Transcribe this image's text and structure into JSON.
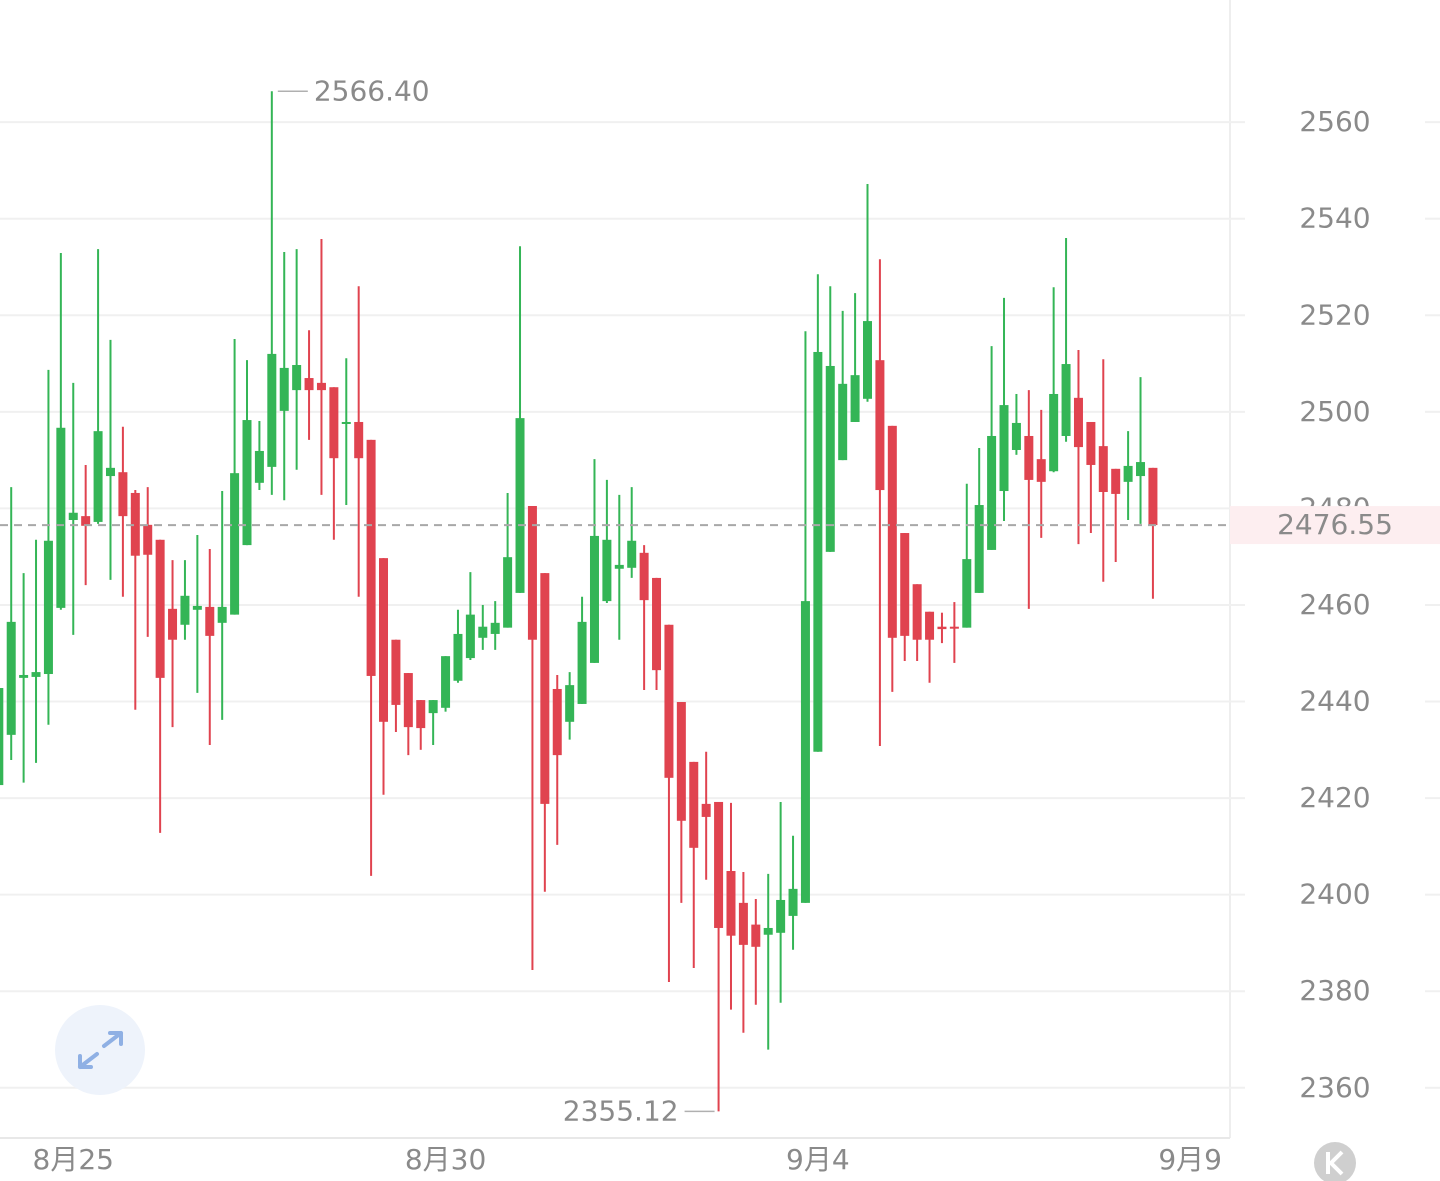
{
  "chart_data": {
    "type": "candlestick",
    "categories": [
      null,
      null,
      null,
      null,
      null,
      null,
      "8月25",
      null,
      null,
      null,
      null,
      null,
      null,
      null,
      null,
      null,
      null,
      null,
      null,
      null,
      null,
      null,
      null,
      null,
      null,
      null,
      null,
      null,
      null,
      null,
      null,
      null,
      null,
      null,
      null,
      null,
      "8月30",
      null,
      null,
      null,
      null,
      null,
      null,
      null,
      null,
      null,
      null,
      null,
      null,
      null,
      null,
      null,
      null,
      null,
      null,
      null,
      null,
      null,
      null,
      null,
      null,
      null,
      null,
      null,
      null,
      null,
      "9月4",
      null,
      null,
      null,
      null,
      null,
      null,
      null,
      null,
      null,
      null,
      null,
      null,
      null,
      null,
      null,
      null,
      null,
      null,
      null,
      null,
      null,
      null,
      null,
      null,
      null,
      null,
      null,
      null,
      null,
      "9月9"
    ],
    "open": [
      2422.7,
      2433.1,
      2444.9,
      2445.1,
      2445.7,
      2459.4,
      2477.6,
      2478.4,
      2477.2,
      2486.7,
      2487.5,
      2483.2,
      2476.6,
      2473.5,
      2459.2,
      2455.9,
      2459.0,
      2459.6,
      2456.3,
      2458.0,
      2472.4,
      2485.3,
      2488.6,
      2500.2,
      2504.5,
      2507.0,
      2506.0,
      2505.1,
      2497.5,
      2497.9,
      2494.2,
      2469.7,
      2452.8,
      2445.9,
      2440.3,
      2437.6,
      2438.7,
      2444.3,
      2449.0,
      2453.2,
      2454.0,
      2455.3,
      2462.5,
      2480.5,
      2466.6,
      2442.6,
      2435.8,
      2439.5,
      2448.0,
      2460.8,
      2467.5,
      2467.7,
      2470.8,
      2465.6,
      2455.9,
      2439.9,
      2427.5,
      2418.8,
      2419.2,
      2404.9,
      2398.3,
      2393.8,
      2391.7,
      2392.1,
      2395.6,
      2398.3,
      2429.6,
      2471.0,
      2490.0,
      2497.9,
      2502.7,
      2510.7,
      2497.1,
      2474.9,
      2464.3,
      2458.6,
      2455.5,
      2455.5,
      2455.3,
      2462.5,
      2471.4,
      2483.6,
      2492.1,
      2495.0,
      2490.2,
      2487.7,
      2495.0,
      2502.9,
      2497.9,
      2492.9,
      2488.2,
      2485.5,
      2486.7,
      2488.4,
      null,
      null,
      null
    ],
    "high": [
      2459.6,
      2484.4,
      2466.6,
      2473.5,
      2508.7,
      2532.9,
      2506.0,
      2489.0,
      2533.7,
      2514.9,
      2496.9,
      2483.8,
      2484.4,
      2473.5,
      2469.3,
      2469.3,
      2474.5,
      2471.6,
      2483.6,
      2515.1,
      2510.7,
      2498.1,
      2566.4,
      2533.1,
      2533.7,
      2516.9,
      2535.8,
      2505.1,
      2511.1,
      2526.0,
      2494.2,
      2469.7,
      2452.8,
      2445.9,
      2440.3,
      2440.3,
      2449.4,
      2459.0,
      2466.8,
      2460.0,
      2460.8,
      2483.2,
      2534.3,
      2480.5,
      2466.6,
      2445.5,
      2446.1,
      2461.7,
      2490.2,
      2485.9,
      2482.8,
      2484.4,
      2472.4,
      2465.6,
      2455.9,
      2439.9,
      2427.5,
      2429.6,
      2419.2,
      2419.0,
      2404.7,
      2399.1,
      2404.3,
      2419.2,
      2412.2,
      2516.7,
      2528.5,
      2526.0,
      2520.9,
      2524.6,
      2547.2,
      2531.6,
      2497.1,
      2474.9,
      2464.3,
      2458.6,
      2458.4,
      2460.6,
      2485.1,
      2492.5,
      2513.6,
      2523.6,
      2503.7,
      2504.5,
      2500.4,
      2525.8,
      2536.0,
      2512.8,
      2497.9,
      2510.9,
      2488.2,
      2496.0,
      2507.2,
      2488.4,
      null,
      null,
      null
    ],
    "low": [
      2422.7,
      2427.9,
      2423.2,
      2427.3,
      2435.2,
      2459.0,
      2453.8,
      2464.1,
      2476.8,
      2465.2,
      2461.7,
      2438.3,
      2453.4,
      2412.8,
      2434.7,
      2452.8,
      2441.8,
      2431.0,
      2436.2,
      2458.0,
      2472.4,
      2483.8,
      2482.8,
      2481.7,
      2488.0,
      2494.2,
      2482.8,
      2473.5,
      2480.7,
      2461.7,
      2403.9,
      2420.7,
      2433.7,
      2428.9,
      2430.0,
      2431.0,
      2437.9,
      2443.9,
      2448.6,
      2450.7,
      2450.7,
      2455.3,
      2462.5,
      2384.4,
      2400.6,
      2410.3,
      2432.1,
      2439.5,
      2448.0,
      2460.4,
      2452.8,
      2465.6,
      2442.4,
      2442.4,
      2381.9,
      2398.3,
      2384.8,
      2403.1,
      2355.12,
      2376.2,
      2371.4,
      2377.2,
      2367.9,
      2377.6,
      2388.6,
      2398.3,
      2429.6,
      2471.0,
      2490.0,
      2497.9,
      2502.1,
      2430.8,
      2442.0,
      2448.4,
      2448.4,
      2443.9,
      2452.1,
      2448.0,
      2455.3,
      2462.5,
      2471.4,
      2477.4,
      2491.1,
      2459.2,
      2473.9,
      2487.5,
      2493.8,
      2472.6,
      2474.9,
      2464.8,
      2468.9,
      2477.6,
      2476.8,
      2461.3,
      null,
      null,
      null
    ],
    "close": [
      2442.8,
      2456.5,
      2445.5,
      2446.1,
      2473.3,
      2496.7,
      2479.1,
      2476.4,
      2496.0,
      2488.4,
      2478.4,
      2470.2,
      2470.4,
      2444.9,
      2452.8,
      2461.9,
      2459.8,
      2453.6,
      2459.6,
      2487.3,
      2498.3,
      2491.9,
      2512.0,
      2509.1,
      2509.7,
      2504.5,
      2504.5,
      2490.4,
      2497.9,
      2490.4,
      2445.3,
      2435.8,
      2439.3,
      2434.7,
      2434.5,
      2440.3,
      2449.4,
      2454.0,
      2458.0,
      2455.5,
      2456.3,
      2469.9,
      2498.7,
      2452.8,
      2418.8,
      2428.9,
      2443.4,
      2456.5,
      2474.3,
      2473.5,
      2468.3,
      2473.3,
      2461.0,
      2446.5,
      2424.2,
      2415.3,
      2409.7,
      2416.1,
      2393.1,
      2391.5,
      2389.6,
      2389.2,
      2393.1,
      2398.9,
      2401.2,
      2460.8,
      2512.4,
      2509.5,
      2505.8,
      2507.6,
      2518.8,
      2483.8,
      2453.2,
      2453.6,
      2452.8,
      2452.8,
      2455.0,
      2455.3,
      2469.5,
      2480.7,
      2495.0,
      2501.4,
      2497.7,
      2485.9,
      2485.5,
      2503.7,
      2509.9,
      2492.7,
      2489.0,
      2483.4,
      2483.0,
      2488.8,
      2489.6,
      2476.55,
      null,
      null,
      null
    ],
    "up_color": "#34b556",
    "down_color": "#e0434f",
    "ylim": [
      2349.6,
      2585.3
    ],
    "yticks": [
      2360,
      2380,
      2400,
      2420,
      2440,
      2460,
      2480,
      2500,
      2520,
      2540,
      2560
    ],
    "grid": true,
    "max_label": {
      "value": 2566.4,
      "label": "2566.40"
    },
    "min_label": 2355.12,
    "last_price": 2476.55
  }
}
